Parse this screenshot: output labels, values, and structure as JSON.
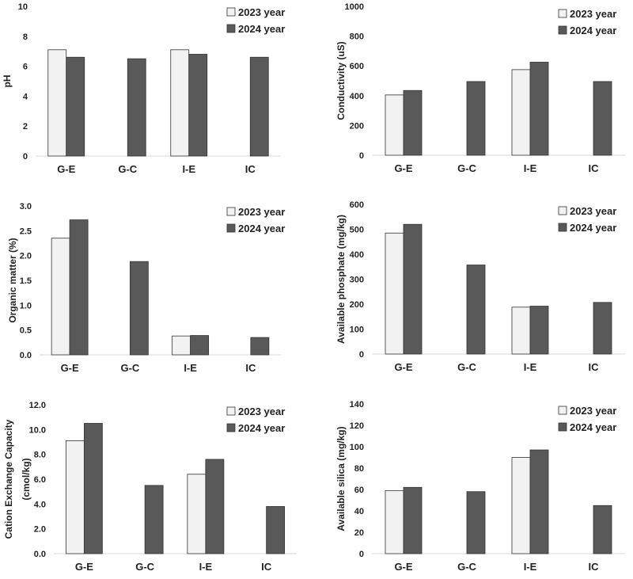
{
  "colors": {
    "y2023": "#f2f2f2",
    "y2024": "#595959",
    "outline": "#333333",
    "axis": "#d9d9d9",
    "text": "#222222"
  },
  "legend": {
    "label_2023": "2023 year",
    "label_2024": "2024 year"
  },
  "chart_data": [
    {
      "type": "bar",
      "title": "",
      "xlabel": "",
      "ylabel": "pH",
      "categories": [
        "G-E",
        "G-C",
        "I-E",
        "IC"
      ],
      "ylim": [
        0,
        10
      ],
      "ticks": [
        "0",
        "2",
        "4",
        "6",
        "8",
        "10"
      ],
      "tick_values": [
        0,
        2,
        4,
        6,
        8,
        10
      ],
      "series": [
        {
          "name": "2023 year",
          "values": [
            7.1,
            null,
            7.1,
            null
          ]
        },
        {
          "name": "2024 year",
          "values": [
            6.6,
            6.5,
            6.8,
            6.6
          ]
        }
      ]
    },
    {
      "type": "bar",
      "title": "",
      "xlabel": "",
      "ylabel": "Conductivity (uS)",
      "categories": [
        "G-E",
        "G-C",
        "I-E",
        "IC"
      ],
      "ylim": [
        0,
        1000
      ],
      "ticks": [
        "0",
        "200",
        "400",
        "600",
        "800",
        "1000"
      ],
      "tick_values": [
        0,
        200,
        400,
        600,
        800,
        1000
      ],
      "series": [
        {
          "name": "2023 year",
          "values": [
            405,
            null,
            575,
            null
          ]
        },
        {
          "name": "2024 year",
          "values": [
            435,
            495,
            625,
            495
          ]
        }
      ]
    },
    {
      "type": "bar",
      "title": "",
      "xlabel": "",
      "ylabel": "Organic matter (%)",
      "categories": [
        "G-E",
        "G-C",
        "I-E",
        "IC"
      ],
      "ylim": [
        0,
        3.0
      ],
      "ticks": [
        "0.0",
        "0.5",
        "1.0",
        "1.5",
        "2.0",
        "2.5",
        "3.0"
      ],
      "tick_values": [
        0,
        0.5,
        1.0,
        1.5,
        2.0,
        2.5,
        3.0
      ],
      "series": [
        {
          "name": "2023 year",
          "values": [
            2.35,
            null,
            0.38,
            null
          ]
        },
        {
          "name": "2024 year",
          "values": [
            2.72,
            1.88,
            0.39,
            0.35
          ]
        }
      ]
    },
    {
      "type": "bar",
      "title": "",
      "xlabel": "",
      "ylabel": "Available phosphate (mg/kg)",
      "categories": [
        "G-E",
        "G-C",
        "I-E",
        "IC"
      ],
      "ylim": [
        0,
        600
      ],
      "ticks": [
        "0",
        "100",
        "200",
        "300",
        "400",
        "500",
        "600"
      ],
      "tick_values": [
        0,
        100,
        200,
        300,
        400,
        500,
        600
      ],
      "series": [
        {
          "name": "2023 year",
          "values": [
            485,
            null,
            188,
            null
          ]
        },
        {
          "name": "2024 year",
          "values": [
            520,
            357,
            192,
            207
          ]
        }
      ]
    },
    {
      "type": "bar",
      "title": "",
      "xlabel": "",
      "ylabel": "Cation Exchange Capacity",
      "ylabel_line2": "(cmol/kg)",
      "categories": [
        "G-E",
        "G-C",
        "I-E",
        "IC"
      ],
      "ylim": [
        0,
        12.0
      ],
      "ticks": [
        "0.0",
        "2.0",
        "4.0",
        "6.0",
        "8.0",
        "10.0",
        "12.0"
      ],
      "tick_values": [
        0,
        2,
        4,
        6,
        8,
        10,
        12
      ],
      "series": [
        {
          "name": "2023 year",
          "values": [
            9.1,
            null,
            6.4,
            null
          ]
        },
        {
          "name": "2024 year",
          "values": [
            10.5,
            5.5,
            7.6,
            3.8
          ]
        }
      ]
    },
    {
      "type": "bar",
      "title": "",
      "xlabel": "",
      "ylabel": "Available silica (mg/kg)",
      "categories": [
        "G-E",
        "G-C",
        "I-E",
        "IC"
      ],
      "ylim": [
        0,
        140
      ],
      "ticks": [
        "0",
        "20",
        "40",
        "60",
        "80",
        "100",
        "120",
        "140"
      ],
      "tick_values": [
        0,
        20,
        40,
        60,
        80,
        100,
        120,
        140
      ],
      "series": [
        {
          "name": "2023 year",
          "values": [
            59,
            null,
            90,
            null
          ]
        },
        {
          "name": "2024 year",
          "values": [
            62,
            58,
            97,
            45
          ]
        }
      ]
    }
  ]
}
